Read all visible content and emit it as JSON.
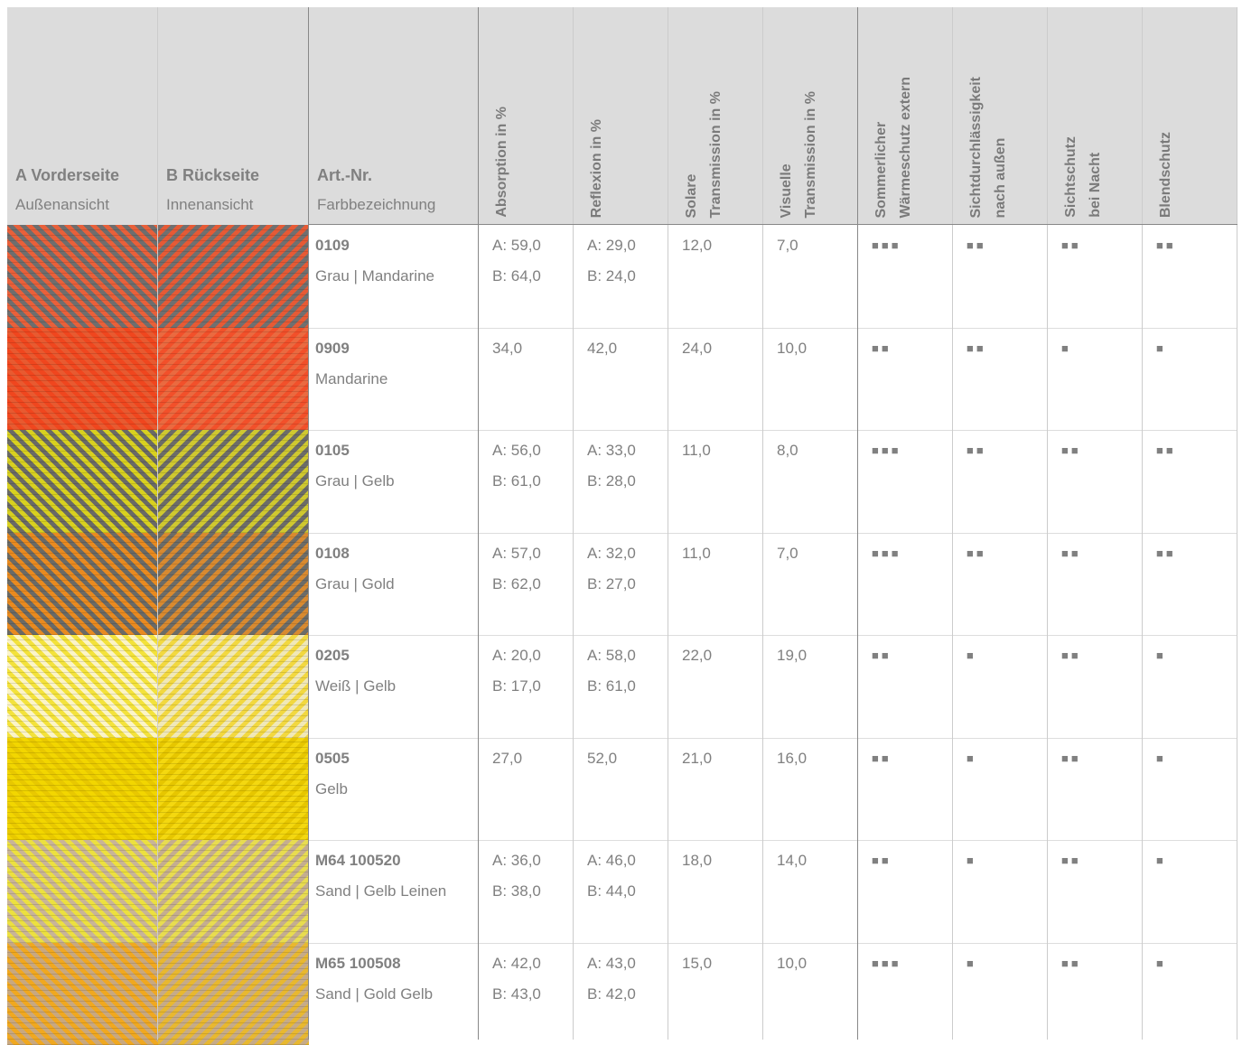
{
  "header": {
    "columns": [
      {
        "title": "A Vorderseite",
        "subtitle": "Außenansicht"
      },
      {
        "title": "B Rückseite",
        "subtitle": "Innenansicht"
      },
      {
        "title": "Art.-Nr.",
        "subtitle": "Farbbezeichnung"
      },
      {
        "lines": [
          "Absorption in %"
        ]
      },
      {
        "lines": [
          "Reflexion in %"
        ]
      },
      {
        "lines": [
          "Solare",
          "Transmission in %"
        ]
      },
      {
        "lines": [
          "Visuelle",
          "Transmission in %"
        ]
      },
      {
        "lines": [
          "Sommerlicher",
          "Wärmeschutz extern"
        ]
      },
      {
        "lines": [
          "Sichtdurchlässigkeit",
          "nach außen"
        ]
      },
      {
        "lines": [
          "Sichtschutz",
          "bei Nacht"
        ]
      },
      {
        "lines": [
          "Blendschutz"
        ]
      }
    ]
  },
  "rows": [
    {
      "number": "0109",
      "name": "Grau | Mandarine",
      "cells": [
        [
          "A: 59,0",
          "B: 64,0"
        ],
        [
          "A: 29,0",
          "B: 24,0"
        ],
        [
          "12,0"
        ],
        [
          "7,0"
        ],
        [
          "■■■"
        ],
        [
          "■■"
        ],
        [
          "■■"
        ],
        [
          "■■"
        ]
      ]
    },
    {
      "number": "0909",
      "name": "Mandarine",
      "cells": [
        [
          "34,0"
        ],
        [
          "42,0"
        ],
        [
          "24,0"
        ],
        [
          "10,0"
        ],
        [
          "■■"
        ],
        [
          "■■"
        ],
        [
          "■"
        ],
        [
          "■"
        ]
      ]
    },
    {
      "number": "0105",
      "name": "Grau | Gelb",
      "cells": [
        [
          "A: 56,0",
          "B: 61,0"
        ],
        [
          "A: 33,0",
          "B: 28,0"
        ],
        [
          "11,0"
        ],
        [
          "8,0"
        ],
        [
          "■■■"
        ],
        [
          "■■"
        ],
        [
          "■■"
        ],
        [
          "■■"
        ]
      ]
    },
    {
      "number": "0108",
      "name": "Grau | Gold",
      "cells": [
        [
          "A: 57,0",
          "B: 62,0"
        ],
        [
          "A: 32,0",
          "B: 27,0"
        ],
        [
          "11,0"
        ],
        [
          "7,0"
        ],
        [
          "■■■"
        ],
        [
          "■■"
        ],
        [
          "■■"
        ],
        [
          "■■"
        ]
      ]
    },
    {
      "number": "0205",
      "name": "Weiß | Gelb",
      "cells": [
        [
          "A: 20,0",
          "B: 17,0"
        ],
        [
          "A: 58,0",
          "B: 61,0"
        ],
        [
          "22,0"
        ],
        [
          "19,0"
        ],
        [
          "■■"
        ],
        [
          "■"
        ],
        [
          "■■"
        ],
        [
          "■"
        ]
      ]
    },
    {
      "number": "0505",
      "name": "Gelb",
      "cells": [
        [
          "27,0"
        ],
        [
          "52,0"
        ],
        [
          "21,0"
        ],
        [
          "16,0"
        ],
        [
          "■■"
        ],
        [
          "■"
        ],
        [
          "■■"
        ],
        [
          "■"
        ]
      ]
    },
    {
      "number": "M64 100520",
      "name": "Sand | Gelb Leinen",
      "cells": [
        [
          "A: 36,0",
          "B: 38,0"
        ],
        [
          "A: 46,0",
          "B: 44,0"
        ],
        [
          "18,0"
        ],
        [
          "14,0"
        ],
        [
          "■■"
        ],
        [
          "■"
        ],
        [
          "■■"
        ],
        [
          "■"
        ]
      ]
    },
    {
      "number": "M65 100508",
      "name": "Sand | Gold Gelb",
      "cells": [
        [
          "A: 42,0",
          "B: 43,0"
        ],
        [
          "A: 43,0",
          "B: 42,0"
        ],
        [
          "15,0"
        ],
        [
          "10,0"
        ],
        [
          "■■■"
        ],
        [
          "■"
        ],
        [
          "■■"
        ],
        [
          "■"
        ]
      ]
    }
  ]
}
